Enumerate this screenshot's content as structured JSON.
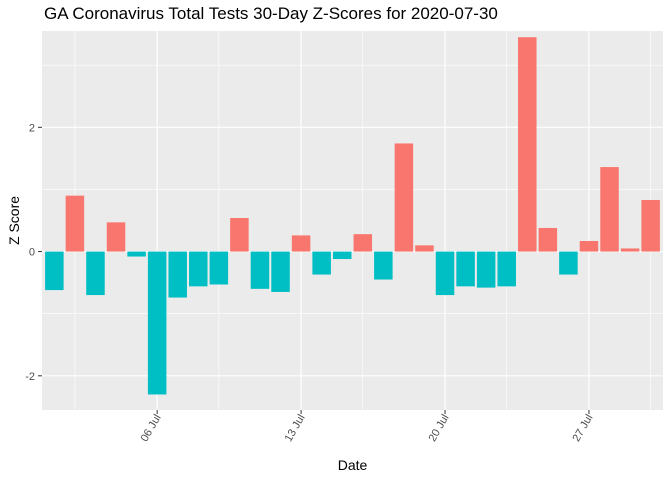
{
  "chart_data": {
    "type": "bar",
    "title": "GA Coronavirus Total Tests 30-Day Z-Scores for 2020-07-30",
    "xlabel": "Date",
    "ylabel": "Z Score",
    "x": [
      "2020-07-01",
      "2020-07-02",
      "2020-07-03",
      "2020-07-04",
      "2020-07-05",
      "2020-07-06",
      "2020-07-07",
      "2020-07-08",
      "2020-07-09",
      "2020-07-10",
      "2020-07-11",
      "2020-07-12",
      "2020-07-13",
      "2020-07-14",
      "2020-07-15",
      "2020-07-16",
      "2020-07-17",
      "2020-07-18",
      "2020-07-19",
      "2020-07-20",
      "2020-07-21",
      "2020-07-22",
      "2020-07-23",
      "2020-07-24",
      "2020-07-25",
      "2020-07-26",
      "2020-07-27",
      "2020-07-28",
      "2020-07-29",
      "2020-07-30"
    ],
    "values": [
      -0.62,
      0.9,
      -0.7,
      0.47,
      -0.08,
      -2.3,
      -0.74,
      -0.56,
      -0.53,
      0.54,
      -0.6,
      -0.65,
      0.26,
      -0.37,
      -0.12,
      0.28,
      -0.45,
      1.74,
      0.1,
      -0.7,
      -0.56,
      -0.58,
      -0.56,
      3.45,
      0.38,
      -0.37,
      0.17,
      1.36,
      0.05,
      0.83
    ],
    "x_ticks": [
      "06 Jul",
      "13 Jul",
      "20 Jul",
      "27 Jul"
    ],
    "y_ticks": [
      "-2",
      "0",
      "2"
    ],
    "ylim": [
      -2.55,
      3.55
    ],
    "colors": {
      "positive": "#f8766d",
      "negative": "#00bfc4",
      "panel": "#ebebeb",
      "grid": "#ffffff"
    },
    "grid": true,
    "legend": "none"
  }
}
